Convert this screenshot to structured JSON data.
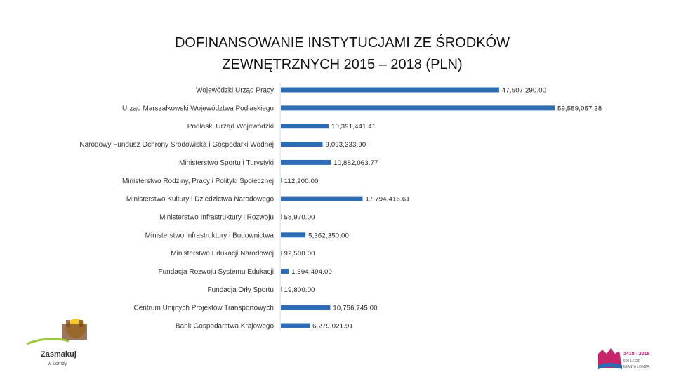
{
  "title_lines": [
    "DOFINANSOWANIE INSTYTUCJAMI ZE ŚRODKÓW",
    "ZEWNĘTRZNYCH 2015 – 2018 (PLN)"
  ],
  "chart_data": {
    "type": "bar",
    "orientation": "horizontal",
    "title": "DOFINANSOWANIE INSTYTUCJAMI ZE ŚRODKÓW ZEWNĘTRZNYCH 2015 – 2018 (PLN)",
    "xlabel": "",
    "ylabel": "",
    "grid": false,
    "xlim": [
      0,
      59589057.38
    ],
    "categories": [
      "Wojewódzki Urząd Pracy",
      "Urząd Marszałkowski Województwa Podlaskiego",
      "Podlaski Urząd Wojewódzki",
      "Narodowy Fundusz Ochrony Środowiska i Gospodarki Wodnej",
      "Ministerstwo Sportu i Turystyki",
      "Ministerstwo Rodziny, Pracy i Polityki Społecznej",
      "Ministerstwo Kultury i Dziedzictwa Narodowego",
      "Ministerstwo Infrastruktury i Rozwoju",
      "Ministerstwo Infrastruktury i Budownictwa",
      "Ministerstwo Edukacji Narodowej",
      "Fundacja Rozwoju Systemu Edukacji",
      "Fundacja Orły Sportu",
      "Centrum Unijnych Projektów Transportowych",
      "Bank Gospodarstwa Krajowego"
    ],
    "values": [
      47507290.0,
      59589057.38,
      10391441.41,
      9093333.9,
      10882063.77,
      112200.0,
      17794416.61,
      58970.0,
      5362350.0,
      92500.0,
      1694494.0,
      19800.0,
      10756745.0,
      6279021.91
    ],
    "value_labels": [
      "47,507,290.00",
      "59,589,057.38",
      "10,391,441.41",
      "9,093,333.90",
      "10,882,063.77",
      "112,200.00",
      "17,794,416.61",
      "58,970.00",
      "5,362,350.00",
      "92,500.00",
      "1,694,494.00",
      "19,800.00",
      "10,756,745.00",
      "6,279,021.91"
    ],
    "bar_color": "#2e6db4"
  },
  "logos": {
    "left": {
      "line1": "Zasmakuj",
      "line2": "w Łomży"
    },
    "right": {
      "years": "1418 - 2018",
      "line2": "600 LECIE",
      "line3": "MIASTA ŁOMŻA"
    }
  }
}
